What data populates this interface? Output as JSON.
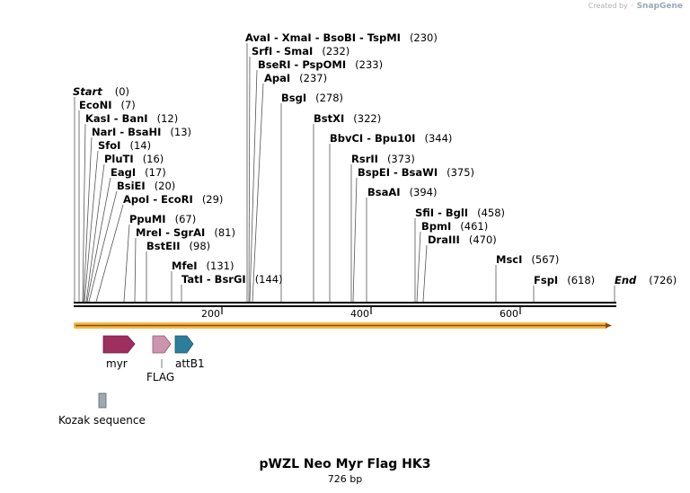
{
  "credit": {
    "prefix": "Created by",
    "brand": "SnapGene"
  },
  "map": {
    "title": "pWZL Neo Myr Flag HK3",
    "length_label": "726 bp",
    "length": 726,
    "ruler_ticks": [
      "200",
      "400",
      "600"
    ],
    "sites": [
      {
        "name": "AvaI  - XmaI  - BsoBI  - TspMI",
        "pos": "(230)"
      },
      {
        "name": "SrfI  - SmaI",
        "pos": "(232)"
      },
      {
        "name": "BseRI  - PspOMI",
        "pos": "(233)"
      },
      {
        "name": "ApaI",
        "pos": "(237)"
      },
      {
        "name": "BsgI",
        "pos": "(278)"
      },
      {
        "name": "BstXI",
        "pos": "(322)"
      },
      {
        "name": "BbvCI  - Bpu10I",
        "pos": "(344)"
      },
      {
        "name": "RsrII",
        "pos": "(373)"
      },
      {
        "name": "BspEI  - BsaWI",
        "pos": "(375)"
      },
      {
        "name": "BsaAI",
        "pos": "(394)"
      },
      {
        "name": "SfiI  - BglI",
        "pos": "(458)"
      },
      {
        "name": "BpmI",
        "pos": "(461)"
      },
      {
        "name": "DraIII",
        "pos": "(470)"
      },
      {
        "name": "MscI",
        "pos": "(567)"
      },
      {
        "name": "FspI",
        "pos": "(618)"
      },
      {
        "name": "End",
        "pos": "(726)"
      },
      {
        "name": "Start",
        "pos": "(0)"
      },
      {
        "name": "EcoNI",
        "pos": "(7)"
      },
      {
        "name": "KasI  - BanI",
        "pos": "(12)"
      },
      {
        "name": "NarI  - BsaHI",
        "pos": "(13)"
      },
      {
        "name": "SfoI",
        "pos": "(14)"
      },
      {
        "name": "PluTI",
        "pos": "(16)"
      },
      {
        "name": "EagI",
        "pos": "(17)"
      },
      {
        "name": "BsiEI",
        "pos": "(20)"
      },
      {
        "name": "ApoI  - EcoRI",
        "pos": "(29)"
      },
      {
        "name": "PpuMI",
        "pos": "(67)"
      },
      {
        "name": "MreI  - SgrAI",
        "pos": "(81)"
      },
      {
        "name": "BstEII",
        "pos": "(98)"
      },
      {
        "name": "MfeI",
        "pos": "(131)"
      },
      {
        "name": "TatI  - BsrGI",
        "pos": "(144)"
      }
    ],
    "features": [
      {
        "name": "myr",
        "color": "#9e2f5f"
      },
      {
        "name": "FLAG",
        "color": "#cc94ad"
      },
      {
        "name": "attB1",
        "color": "#2d7e9b"
      },
      {
        "name": "Kozak sequence",
        "color": "#a0a8b2"
      }
    ],
    "orf_color": "#f5b94a"
  }
}
